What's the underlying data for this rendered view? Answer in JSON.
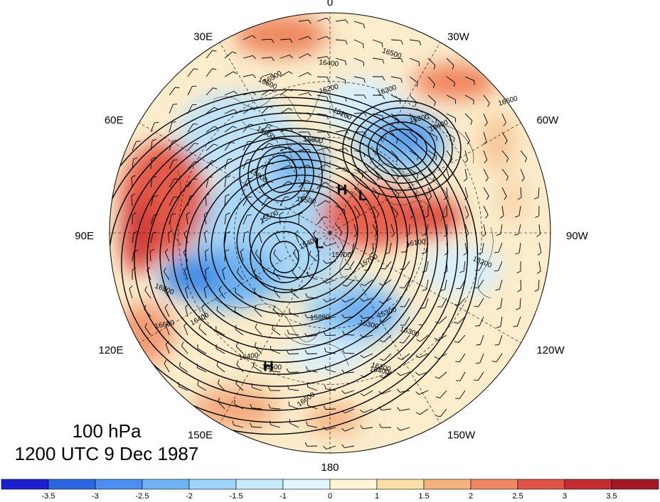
{
  "caption": {
    "level": "100 hPa",
    "datetime": "1200 UTC 9 Dec 1987"
  },
  "longitude_labels": [
    "0",
    "30W",
    "60W",
    "90W",
    "120W",
    "150W",
    "180",
    "150E",
    "120E",
    "90E",
    "60E",
    "30E"
  ],
  "pressure_centers": [
    {
      "label": "H",
      "lat": 70,
      "lon": -15
    },
    {
      "label": "L",
      "lat": 68,
      "lon": -40
    },
    {
      "label": "L",
      "lat": 84,
      "lon": 130
    },
    {
      "label": "H",
      "lat": 32,
      "lon": 155
    }
  ],
  "contour_labels": [
    "16600",
    "16500",
    "16500",
    "16400",
    "16400",
    "16400",
    "16400",
    "16300",
    "16300",
    "16300",
    "16200",
    "16200",
    "16200",
    "16100",
    "16100",
    "15900",
    "15800",
    "15800",
    "15700",
    "15700",
    "15600",
    "15500",
    "15500",
    "15400",
    "15300",
    "15300",
    "16500",
    "16600",
    "16500",
    "16600",
    "16500",
    "16400"
  ],
  "colorbar": {
    "tick_labels": [
      "-3.5",
      "-3",
      "-2.5",
      "-2",
      "-1.5",
      "-1",
      "0",
      "1",
      "1.5",
      "2",
      "2.5",
      "3",
      "3.5"
    ],
    "colors": [
      "#1d1fcf",
      "#2a66e0",
      "#4a8ff0",
      "#6fb3f5",
      "#9dd4f8",
      "#c6e9fb",
      "#e2f4fc",
      "#fdf3d5",
      "#fadfa6",
      "#f6b27e",
      "#f08662",
      "#e05447",
      "#c42c33",
      "#a01a26"
    ]
  },
  "colors": {
    "contour": "#000000",
    "graticule": "#000000",
    "background": "#ffffff"
  }
}
